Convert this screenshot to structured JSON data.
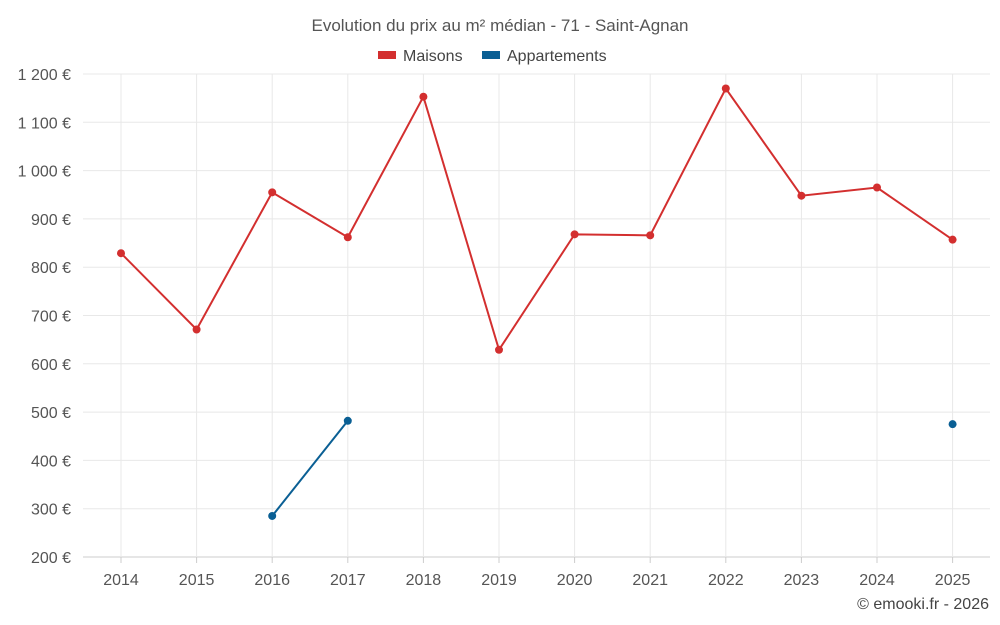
{
  "chart_data": {
    "type": "line",
    "title": "Evolution du prix au m² médian - 71 - Saint-Agnan",
    "categories": [
      "2014",
      "2015",
      "2016",
      "2017",
      "2018",
      "2019",
      "2020",
      "2021",
      "2022",
      "2023",
      "2024",
      "2025"
    ],
    "ylim": [
      200,
      1200
    ],
    "yticks": [
      200,
      300,
      400,
      500,
      600,
      700,
      800,
      900,
      1000,
      1100,
      1200
    ],
    "ytick_labels": [
      "200 €",
      "300 €",
      "400 €",
      "500 €",
      "600 €",
      "700 €",
      "800 €",
      "900 €",
      "1 000 €",
      "1 100 €",
      "1 200 €"
    ],
    "grid": true,
    "legend_position": "top-center",
    "series": [
      {
        "name": "Maisons",
        "color": "#d32f2f",
        "values": [
          829,
          671,
          955,
          862,
          1153,
          629,
          868,
          866,
          1170,
          948,
          965,
          857
        ]
      },
      {
        "name": "Appartements",
        "color": "#0a5f94",
        "values": [
          null,
          null,
          285,
          482,
          null,
          null,
          null,
          null,
          null,
          null,
          null,
          475
        ]
      }
    ]
  },
  "credit": "© emooki.fr - 2026"
}
